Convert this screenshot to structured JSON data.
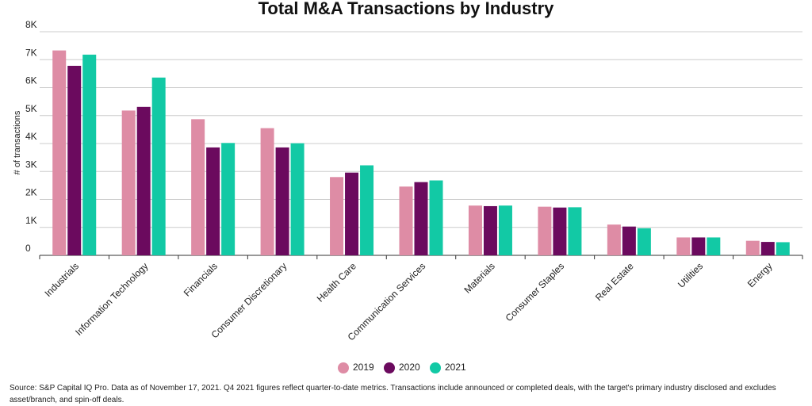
{
  "chart_data": {
    "type": "bar",
    "title": "Total M&A Transactions by Industry",
    "y_label": "# of transactions",
    "categories": [
      "Industrials",
      "Information Technology",
      "Financials",
      "Consumer Discretionary",
      "Health Care",
      "Communication Services",
      "Materials",
      "Consumer Staples",
      "Real Estate",
      "Utilities",
      "Energy"
    ],
    "series": [
      {
        "name": "2019",
        "color": "#de8ca5",
        "values": [
          7330,
          5180,
          4870,
          4550,
          2800,
          2460,
          1780,
          1740,
          1100,
          640,
          520
        ]
      },
      {
        "name": "2020",
        "color": "#6b0a5e",
        "values": [
          6780,
          5310,
          3860,
          3860,
          2960,
          2620,
          1760,
          1710,
          1030,
          640,
          480
        ]
      },
      {
        "name": "2021",
        "color": "#12c9a5",
        "values": [
          7180,
          6360,
          4020,
          4010,
          3220,
          2680,
          1780,
          1720,
          970,
          640,
          470
        ]
      }
    ],
    "ylim": [
      0,
      8000
    ],
    "yticks": [
      0,
      {
        "value": 1000,
        "label": "1K"
      },
      {
        "value": 2000,
        "label": "2K"
      },
      {
        "value": 3000,
        "label": "3K"
      },
      {
        "value": 4000,
        "label": "4K"
      },
      {
        "value": 5000,
        "label": "5K"
      },
      {
        "value": 6000,
        "label": "6K"
      },
      {
        "value": 7000,
        "label": "7K"
      },
      {
        "value": 8000,
        "label": "8K"
      }
    ],
    "grid": true,
    "legend": "bottom",
    "source": "Source: S&P Capital IQ Pro. Data as of November 17, 2021. Q4 2021 figures reflect quarter-to-date metrics. Transactions include announced or completed deals, with the target's primary industry disclosed and excludes asset/branch, and spin-off deals."
  }
}
